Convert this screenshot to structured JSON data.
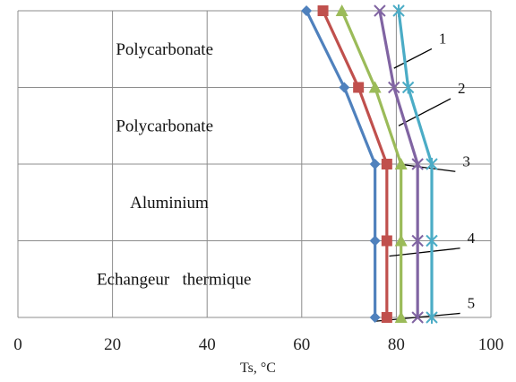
{
  "chart_data": {
    "type": "line",
    "orientation": "horizontal-profile",
    "xlabel": "Ts, °C",
    "xlim": [
      0,
      100
    ],
    "x_ticks": [
      0,
      20,
      40,
      60,
      80,
      100
    ],
    "grid": "vertical and horizontal",
    "layers": [
      {
        "label": "Polycarbonate",
        "label_x": 31
      },
      {
        "label": "Polycarbonate",
        "label_x": 31
      },
      {
        "label": "Aluminium",
        "label_x": 32
      },
      {
        "label": "Echangeur   thermique",
        "label_x": 33
      }
    ],
    "boundaries": [
      0,
      1,
      2,
      3,
      4
    ],
    "series": [
      {
        "name": "1",
        "color": "#4bacc6",
        "marker": "star",
        "values": [
          80.5,
          82.5,
          87.5,
          87.5,
          87.5
        ],
        "label_pos": [
          89,
          0.45
        ],
        "leader_end": [
          79.5,
          0.75
        ]
      },
      {
        "name": "2",
        "color": "#8064a2",
        "marker": "x",
        "values": [
          76.5,
          79.5,
          84.5,
          84.5,
          84.5
        ],
        "label_pos": [
          93,
          1.1
        ],
        "leader_end": [
          80.5,
          1.5
        ]
      },
      {
        "name": "3",
        "color": "#9bbb59",
        "marker": "triangle",
        "values": [
          68.5,
          75.5,
          81.0,
          81.0,
          81.0
        ],
        "label_pos": [
          94,
          2.05
        ],
        "leader_end": [
          80.5,
          2.0
        ]
      },
      {
        "name": "4",
        "color": "#c0504d",
        "marker": "square",
        "values": [
          64.5,
          72.0,
          78.0,
          78.0,
          78.0
        ],
        "label_pos": [
          95,
          3.05
        ],
        "leader_end": [
          78.5,
          3.2
        ]
      },
      {
        "name": "5",
        "color": "#4f81bd",
        "marker": "diamond",
        "values": [
          61.0,
          69.0,
          75.5,
          75.5,
          75.5
        ],
        "label_pos": [
          95,
          3.9
        ],
        "leader_end": [
          75.5,
          4.05
        ]
      }
    ]
  }
}
